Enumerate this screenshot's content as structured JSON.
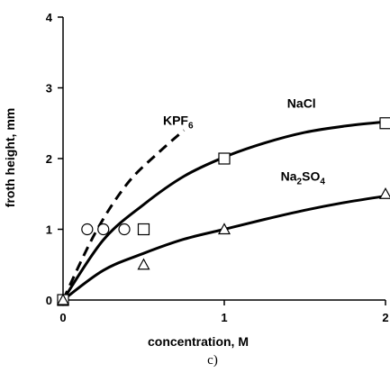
{
  "chart_data": {
    "type": "scatter",
    "panel_label": "c)",
    "xlabel": "concentration, M",
    "ylabel": "froth height, mm",
    "xlim": [
      0,
      2
    ],
    "ylim": [
      0,
      4
    ],
    "x_ticks": [
      "0",
      "1",
      "2"
    ],
    "y_ticks": [
      "0",
      "1",
      "2",
      "3",
      "4"
    ],
    "grid": false,
    "series": [
      {
        "name": "KPF6",
        "label": {
          "main": "KPF",
          "sub": "6"
        },
        "marker": "circle",
        "points": [
          [
            0,
            0
          ],
          [
            0.15,
            1.0
          ],
          [
            0.25,
            1.0
          ],
          [
            0.38,
            1.0
          ]
        ],
        "fit": [
          [
            0,
            0
          ],
          [
            0.2,
            0.95
          ],
          [
            0.4,
            1.65
          ],
          [
            0.6,
            2.1
          ],
          [
            0.75,
            2.4
          ]
        ],
        "fit_style": "dashed"
      },
      {
        "name": "NaCl",
        "label": {
          "main": "NaCl",
          "sub": ""
        },
        "marker": "square",
        "points": [
          [
            0,
            0
          ],
          [
            0.5,
            1.0
          ],
          [
            1.0,
            2.0
          ],
          [
            2.0,
            2.5
          ]
        ],
        "fit": [
          [
            0,
            0
          ],
          [
            0.25,
            0.85
          ],
          [
            0.5,
            1.35
          ],
          [
            0.75,
            1.75
          ],
          [
            1.0,
            2.02
          ],
          [
            1.25,
            2.22
          ],
          [
            1.5,
            2.37
          ],
          [
            1.75,
            2.46
          ],
          [
            2.0,
            2.52
          ]
        ],
        "fit_style": "solid"
      },
      {
        "name": "Na2SO4",
        "label": {
          "main": "Na",
          "sub": "2",
          "main2": "SO",
          "sub2": "4"
        },
        "marker": "triangle",
        "points": [
          [
            0,
            0
          ],
          [
            0.5,
            0.5
          ],
          [
            1.0,
            1.0
          ],
          [
            2.0,
            1.5
          ]
        ],
        "fit": [
          [
            0,
            0
          ],
          [
            0.25,
            0.42
          ],
          [
            0.5,
            0.66
          ],
          [
            0.75,
            0.86
          ],
          [
            1.0,
            1.0
          ],
          [
            1.25,
            1.14
          ],
          [
            1.5,
            1.27
          ],
          [
            1.75,
            1.38
          ],
          [
            2.0,
            1.47
          ]
        ],
        "fit_style": "solid"
      }
    ]
  }
}
